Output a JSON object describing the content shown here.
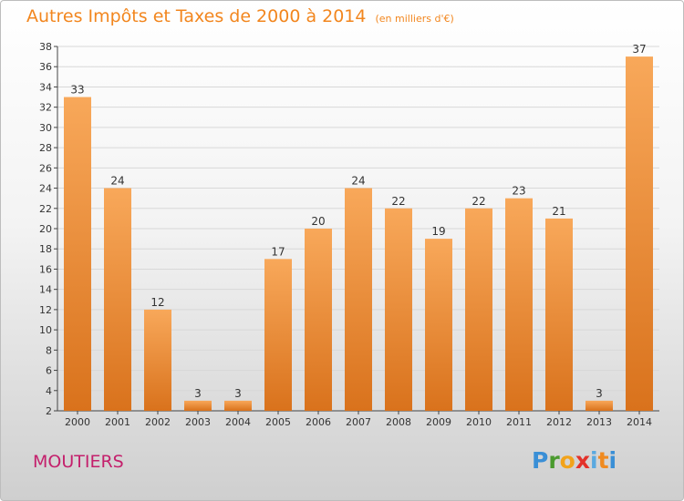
{
  "header": {
    "title": "Autres Impôts et Taxes de 2000 à 2014",
    "subtitle": "(en milliers d'€)"
  },
  "footer": {
    "commune": "MOUTIERS",
    "logo_letters": [
      "P",
      "r",
      "o",
      "x",
      "i",
      "t",
      "i"
    ],
    "logo_colors": [
      "#3a8fd6",
      "#4a9a2e",
      "#f2a31b",
      "#e3322b",
      "#5aa9e0",
      "#f08a1f",
      "#3a8fd6"
    ]
  },
  "colors": {
    "bar_light": "#f8a85a",
    "bar_dark": "#d9721c",
    "grid": "#d8d8d8",
    "axis": "#444444"
  },
  "chart_data": {
    "type": "bar",
    "title": "Autres Impôts et Taxes de 2000 à 2014",
    "subtitle": "(en milliers d'€)",
    "categories": [
      "2000",
      "2001",
      "2002",
      "2003",
      "2004",
      "2005",
      "2006",
      "2007",
      "2008",
      "2009",
      "2010",
      "2011",
      "2012",
      "2013",
      "2014"
    ],
    "values": [
      33,
      24,
      12,
      3,
      3,
      17,
      20,
      24,
      22,
      19,
      22,
      23,
      21,
      3,
      37
    ],
    "ylim": [
      2,
      38
    ],
    "yticks": [
      2,
      4,
      6,
      8,
      10,
      12,
      14,
      16,
      18,
      20,
      22,
      24,
      26,
      28,
      30,
      32,
      34,
      36,
      38
    ],
    "grid": true,
    "legend": "none"
  }
}
